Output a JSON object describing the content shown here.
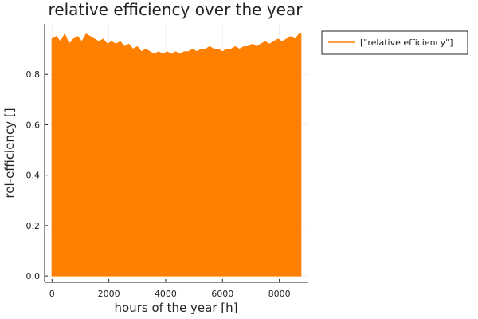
{
  "chart_data": {
    "type": "area",
    "title": "relative efficiency over the year",
    "xlabel": "hours of the year [h]",
    "ylabel": "rel-efficiency []",
    "xlim": [
      0,
      8760
    ],
    "ylim": [
      0,
      1
    ],
    "xticks": [
      0,
      2000,
      4000,
      6000,
      8000
    ],
    "xtick_labels": [
      "0",
      "2000",
      "4000",
      "6000",
      "8000"
    ],
    "yticks": [
      0.0,
      0.2,
      0.4,
      0.6,
      0.8
    ],
    "ytick_labels": [
      "0.0",
      "0.2",
      "0.4",
      "0.6",
      "0.8"
    ],
    "grid": true,
    "legend_position": "outside-top-right",
    "series": [
      {
        "name": "[\"relative efficiency\"]",
        "color": "#ff8000",
        "x": [
          0,
          150,
          300,
          450,
          600,
          750,
          900,
          1050,
          1200,
          1350,
          1500,
          1650,
          1800,
          1950,
          2100,
          2250,
          2400,
          2550,
          2700,
          2850,
          3000,
          3150,
          3300,
          3450,
          3600,
          3750,
          3900,
          4050,
          4200,
          4350,
          4500,
          4650,
          4800,
          4950,
          5100,
          5250,
          5400,
          5550,
          5700,
          5850,
          6000,
          6150,
          6300,
          6450,
          6600,
          6750,
          6900,
          7050,
          7200,
          7350,
          7500,
          7650,
          7800,
          7950,
          8100,
          8250,
          8400,
          8550,
          8700,
          8760
        ],
        "values": [
          0.94,
          0.95,
          0.93,
          0.96,
          0.92,
          0.94,
          0.95,
          0.93,
          0.96,
          0.95,
          0.94,
          0.93,
          0.94,
          0.92,
          0.93,
          0.92,
          0.93,
          0.91,
          0.92,
          0.9,
          0.91,
          0.89,
          0.9,
          0.89,
          0.88,
          0.89,
          0.88,
          0.89,
          0.88,
          0.89,
          0.88,
          0.89,
          0.89,
          0.9,
          0.89,
          0.9,
          0.9,
          0.91,
          0.9,
          0.9,
          0.89,
          0.9,
          0.9,
          0.91,
          0.9,
          0.91,
          0.91,
          0.92,
          0.91,
          0.92,
          0.93,
          0.92,
          0.93,
          0.94,
          0.93,
          0.94,
          0.95,
          0.94,
          0.96,
          0.96
        ]
      }
    ]
  }
}
